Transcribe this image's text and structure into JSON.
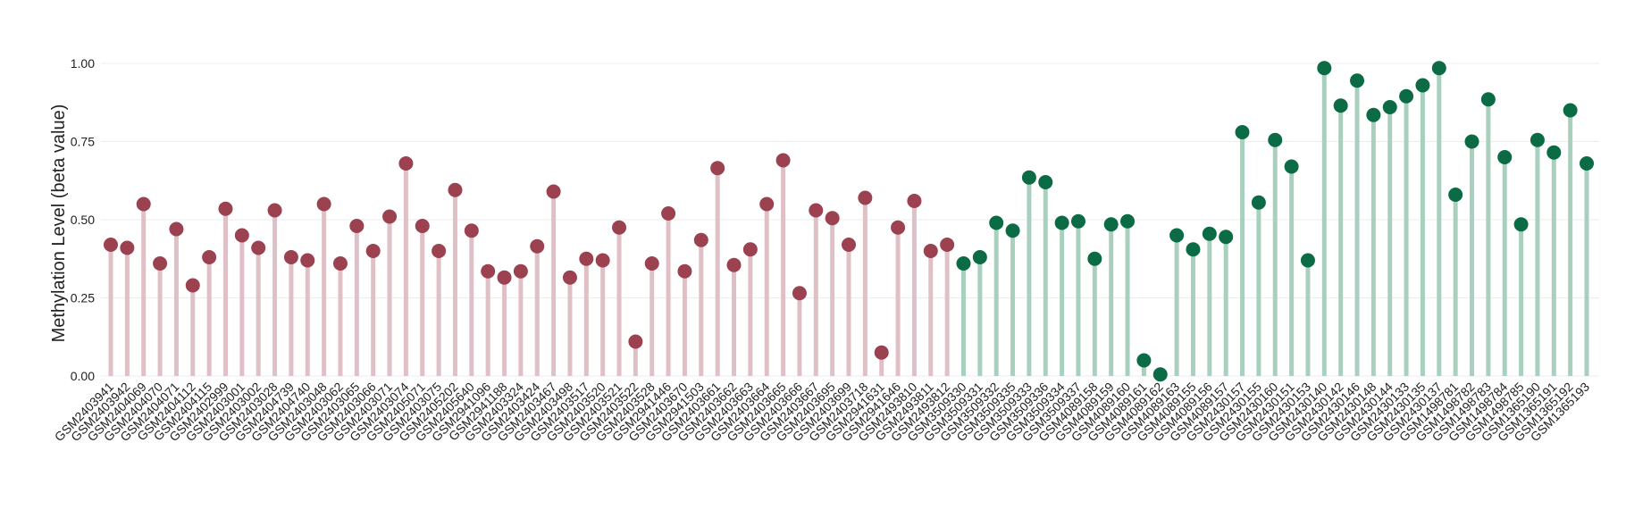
{
  "chart_data": {
    "type": "lollipop",
    "y_label": "Methylation Level (beta value)",
    "ylim": [
      0,
      1.05
    ],
    "yticks": [
      {
        "value": 0,
        "label": "0.00"
      },
      {
        "value": 0.25,
        "label": "0.25"
      },
      {
        "value": 0.5,
        "label": "0.50"
      },
      {
        "value": 0.75,
        "label": "0.75"
      },
      {
        "value": 1,
        "label": "1.00"
      }
    ],
    "grid": true,
    "categories": [
      "GSM2403941",
      "GSM2403942",
      "GSM2404069",
      "GSM2404070",
      "GSM2404071",
      "GSM2404112",
      "GSM2404115",
      "GSM2402999",
      "GSM2403001",
      "GSM2403002",
      "GSM2403028",
      "GSM2404739",
      "GSM2404740",
      "GSM2403048",
      "GSM2403062",
      "GSM2403065",
      "GSM2403066",
      "GSM2403071",
      "GSM2403074",
      "GSM2405071",
      "GSM2403075",
      "GSM2405202",
      "GSM2405640",
      "GSM2941096",
      "GSM2941188",
      "GSM2403324",
      "GSM2403424",
      "GSM2403467",
      "GSM2403498",
      "GSM2403517",
      "GSM2403520",
      "GSM2403521",
      "GSM2403522",
      "GSM2403528",
      "GSM2941446",
      "GSM2403670",
      "GSM2941503",
      "GSM2403661",
      "GSM2403662",
      "GSM2403663",
      "GSM2403664",
      "GSM2403665",
      "GSM2403666",
      "GSM2403667",
      "GSM2403695",
      "GSM2403699",
      "GSM2403718",
      "GSM2941631",
      "GSM2941646",
      "GSM2493810",
      "GSM2493811",
      "GSM2493812",
      "GSM3509330",
      "GSM3509331",
      "GSM3509332",
      "GSM3509335",
      "GSM3509333",
      "GSM3509336",
      "GSM3509334",
      "GSM3509337",
      "GSM4089158",
      "GSM4089159",
      "GSM4089160",
      "GSM4089161",
      "GSM4089162",
      "GSM4089163",
      "GSM4089155",
      "GSM4089156",
      "GSM4089157",
      "GSM2430157",
      "GSM2430155",
      "GSM2430160",
      "GSM2430151",
      "GSM2430153",
      "GSM2430140",
      "GSM2430142",
      "GSM2430146",
      "GSM2430148",
      "GSM2430144",
      "GSM2430133",
      "GSM2430135",
      "GSM2430137",
      "GSM1498781",
      "GSM1498782",
      "GSM1498783",
      "GSM1498784",
      "GSM1498785",
      "GSM1365190",
      "GSM1365191",
      "GSM1365192",
      "GSM1365193"
    ],
    "series": [
      {
        "color": "#9b4150",
        "stem_color": "#dfc0c6",
        "values": [
          0.42,
          0.41,
          0.55,
          0.36,
          0.47,
          0.29,
          0.38,
          0.535,
          0.45,
          0.41,
          0.53,
          0.38,
          0.37,
          0.55,
          0.36,
          0.48,
          0.4,
          0.51,
          0.68,
          0.48,
          0.4,
          0.595,
          0.465,
          0.335,
          0.315,
          0.335,
          0.415,
          0.59,
          0.315,
          0.375,
          0.37,
          0.475,
          0.11,
          0.36,
          0.52,
          0.335,
          0.435,
          0.665,
          0.355,
          0.405,
          0.55,
          0.69,
          0.265,
          0.53,
          0.505,
          0.42,
          0.57,
          0.075,
          0.475,
          0.56,
          0.4,
          0.42,
          null,
          null,
          null,
          null,
          null,
          null,
          null,
          null,
          null,
          null,
          null,
          null,
          null,
          null,
          null,
          null,
          null,
          null,
          null,
          null,
          null,
          null,
          null,
          null,
          null,
          null,
          null,
          null,
          null,
          null,
          null,
          null,
          null,
          null,
          null,
          null,
          null,
          null,
          null
        ]
      },
      {
        "color": "#0b6b45",
        "stem_color": "#a9d0bf",
        "values": [
          null,
          null,
          null,
          null,
          null,
          null,
          null,
          null,
          null,
          null,
          null,
          null,
          null,
          null,
          null,
          null,
          null,
          null,
          null,
          null,
          null,
          null,
          null,
          null,
          null,
          null,
          null,
          null,
          null,
          null,
          null,
          null,
          null,
          null,
          null,
          null,
          null,
          null,
          null,
          null,
          null,
          null,
          null,
          null,
          null,
          null,
          null,
          null,
          null,
          null,
          null,
          null,
          0.36,
          0.38,
          0.49,
          0.465,
          0.635,
          0.62,
          0.49,
          0.495,
          0.375,
          0.485,
          0.495,
          0.05,
          0.005,
          0.45,
          0.405,
          0.455,
          0.445,
          0.78,
          0.555,
          0.755,
          0.67,
          0.37,
          0.985,
          0.865,
          0.945,
          0.835,
          0.86,
          0.895,
          0.93,
          0.985,
          0.58,
          0.75,
          0.885,
          0.7,
          0.485,
          0.755,
          0.715,
          0.85,
          0.68
        ]
      }
    ]
  }
}
